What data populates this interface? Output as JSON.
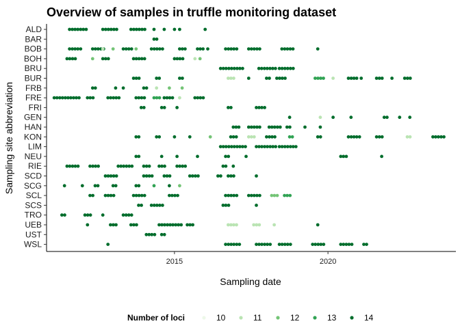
{
  "chart_data": {
    "type": "scatter",
    "title": "Overview of samples in truffle monitoring dataset",
    "xlabel": "Sampling date",
    "ylabel": "Sampling site abbreviation",
    "x_ticks": [
      "2015",
      "2020"
    ],
    "xlim": [
      "2010-11-01",
      "2024-03-01"
    ],
    "grid": false,
    "legend": {
      "title": "Number of loci",
      "position": "bottom",
      "entries": [
        {
          "label": "10",
          "color": "#edf8e9"
        },
        {
          "label": "11",
          "color": "#bae4b3"
        },
        {
          "label": "12",
          "color": "#74c476"
        },
        {
          "label": "13",
          "color": "#31a354"
        },
        {
          "label": "14",
          "color": "#006d2c"
        }
      ]
    },
    "categories": [
      "ALD",
      "BAR",
      "BOB",
      "BOH",
      "BRU",
      "BUR",
      "FRB",
      "FRE",
      "FRI",
      "GEN",
      "HAN",
      "KON",
      "LIM",
      "NEU",
      "RIE",
      "SCD",
      "SCG",
      "SCL",
      "SCS",
      "TRO",
      "UEB",
      "UST",
      "WSL"
    ],
    "series": [
      {
        "site": "ALD",
        "points": [
          [
            "2011-08-01",
            14,
            7
          ],
          [
            "2012-09-01",
            14,
            6
          ],
          [
            "2013-08-01",
            14,
            6
          ],
          [
            "2014-05-01",
            14,
            1
          ],
          [
            "2014-09-01",
            14,
            1
          ],
          [
            "2015-01-01",
            14,
            1
          ],
          [
            "2015-03-01",
            14,
            1
          ],
          [
            "2016-01-01",
            14,
            1
          ]
        ]
      },
      {
        "site": "BAR",
        "points": [
          [
            "2014-05-01",
            14,
            2
          ]
        ]
      },
      {
        "site": "BOB",
        "points": [
          [
            "2011-08-01",
            14,
            5
          ],
          [
            "2012-05-01",
            14,
            5
          ],
          [
            "2012-09-01",
            11,
            1
          ],
          [
            "2013-01-01",
            12,
            1
          ],
          [
            "2013-05-01",
            14,
            4
          ],
          [
            "2013-10-01",
            12,
            1
          ],
          [
            "2014-04-01",
            14,
            5
          ],
          [
            "2015-03-01",
            14,
            3
          ],
          [
            "2015-10-01",
            14,
            3
          ],
          [
            "2016-02-01",
            14,
            1
          ],
          [
            "2016-09-01",
            14,
            5
          ],
          [
            "2017-06-01",
            14,
            5
          ],
          [
            "2018-07-01",
            14,
            5
          ],
          [
            "2019-09-01",
            14,
            1
          ]
        ]
      },
      {
        "site": "BOH",
        "points": [
          [
            "2011-07-01",
            14,
            4
          ],
          [
            "2012-05-01",
            12,
            1
          ],
          [
            "2012-09-01",
            14,
            3
          ],
          [
            "2013-09-01",
            14,
            5
          ],
          [
            "2015-01-01",
            14,
            4
          ],
          [
            "2015-09-01",
            11,
            1
          ],
          [
            "2015-11-01",
            12,
            1
          ]
        ]
      },
      {
        "site": "BRU",
        "points": [
          [
            "2016-07-01",
            14,
            9
          ],
          [
            "2017-10-01",
            14,
            7
          ],
          [
            "2018-06-01",
            14,
            6
          ]
        ]
      },
      {
        "site": "BUR",
        "points": [
          [
            "2013-09-01",
            14,
            3
          ],
          [
            "2014-06-01",
            14,
            2
          ],
          [
            "2015-03-01",
            14,
            2
          ],
          [
            "2016-10-01",
            11,
            3
          ],
          [
            "2017-06-01",
            14,
            1
          ],
          [
            "2018-01-01",
            14,
            2
          ],
          [
            "2018-05-01",
            14,
            4
          ],
          [
            "2019-08-01",
            13,
            4
          ],
          [
            "2020-03-01",
            11,
            1
          ],
          [
            "2020-09-01",
            14,
            4
          ],
          [
            "2021-02-01",
            14,
            1
          ],
          [
            "2021-08-01",
            14,
            3
          ],
          [
            "2022-02-01",
            14,
            1
          ],
          [
            "2022-07-01",
            14,
            3
          ]
        ]
      },
      {
        "site": "FRB",
        "points": [
          [
            "2012-05-01",
            14,
            2
          ],
          [
            "2013-02-01",
            14,
            1
          ],
          [
            "2013-05-01",
            14,
            1
          ],
          [
            "2014-01-01",
            14,
            2
          ],
          [
            "2014-06-01",
            11,
            1
          ],
          [
            "2014-11-01",
            12,
            1
          ],
          [
            "2015-04-01",
            12,
            1
          ]
        ]
      },
      {
        "site": "FRE",
        "points": [
          [
            "2011-02-01",
            14,
            10
          ],
          [
            "2012-03-01",
            14,
            3
          ],
          [
            "2012-11-01",
            14,
            5
          ],
          [
            "2013-10-01",
            14,
            4
          ],
          [
            "2014-05-01",
            13,
            3
          ],
          [
            "2014-09-01",
            14,
            4
          ],
          [
            "2015-03-01",
            11,
            1
          ],
          [
            "2015-09-01",
            14,
            4
          ]
        ]
      },
      {
        "site": "FRI",
        "points": [
          [
            "2013-12-01",
            14,
            2
          ],
          [
            "2014-08-01",
            14,
            2
          ],
          [
            "2015-02-01",
            14,
            1
          ],
          [
            "2016-10-01",
            14,
            2
          ],
          [
            "2017-09-01",
            14,
            4
          ]
        ]
      },
      {
        "site": "GEN",
        "points": [
          [
            "2018-10-01",
            14,
            1
          ],
          [
            "2019-10-01",
            11,
            1
          ],
          [
            "2020-03-01",
            14,
            1
          ],
          [
            "2020-10-01",
            14,
            1
          ],
          [
            "2021-11-01",
            14,
            2
          ],
          [
            "2022-05-01",
            14,
            1
          ],
          [
            "2022-09-01",
            14,
            1
          ]
        ]
      },
      {
        "site": "HAN",
        "points": [
          [
            "2016-12-01",
            14,
            3
          ],
          [
            "2017-06-01",
            14,
            5
          ],
          [
            "2018-02-01",
            14,
            5
          ],
          [
            "2018-09-01",
            14,
            2
          ],
          [
            "2019-04-01",
            14,
            1
          ],
          [
            "2019-10-01",
            14,
            1
          ]
        ]
      },
      {
        "site": "KON",
        "points": [
          [
            "2013-10-01",
            14,
            2
          ],
          [
            "2014-06-01",
            14,
            2
          ],
          [
            "2015-01-01",
            14,
            1
          ],
          [
            "2015-07-01",
            14,
            1
          ],
          [
            "2016-03-01",
            12,
            1
          ],
          [
            "2016-11-01",
            14,
            3
          ],
          [
            "2017-06-01",
            11,
            3
          ],
          [
            "2018-01-01",
            14,
            4
          ],
          [
            "2018-10-01",
            13,
            2
          ],
          [
            "2019-09-01",
            14,
            2
          ],
          [
            "2020-09-01",
            14,
            5
          ],
          [
            "2021-08-01",
            14,
            3
          ],
          [
            "2022-08-01",
            11,
            2
          ],
          [
            "2023-06-01",
            14,
            5
          ]
        ]
      },
      {
        "site": "LIM",
        "points": [
          [
            "2016-07-01",
            14,
            10
          ],
          [
            "2017-09-01",
            14,
            8
          ],
          [
            "2018-06-01",
            14,
            7
          ]
        ]
      },
      {
        "site": "NEU",
        "points": [
          [
            "2013-10-01",
            14,
            2
          ],
          [
            "2014-08-01",
            14,
            1
          ],
          [
            "2015-02-01",
            14,
            1
          ],
          [
            "2015-10-01",
            14,
            1
          ],
          [
            "2016-09-01",
            14,
            2
          ],
          [
            "2017-05-01",
            14,
            1
          ],
          [
            "2020-06-01",
            14,
            3
          ],
          [
            "2021-10-01",
            14,
            1
          ]
        ]
      },
      {
        "site": "RIE",
        "points": [
          [
            "2011-07-01",
            14,
            5
          ],
          [
            "2012-04-01",
            14,
            4
          ],
          [
            "2013-03-01",
            14,
            6
          ],
          [
            "2014-01-01",
            14,
            3
          ],
          [
            "2014-07-01",
            14,
            3
          ],
          [
            "2015-02-01",
            14,
            4
          ],
          [
            "2016-08-01",
            14,
            2
          ],
          [
            "2016-12-01",
            14,
            1
          ]
        ]
      },
      {
        "site": "SCD",
        "points": [
          [
            "2012-10-01",
            14,
            5
          ],
          [
            "2014-01-01",
            14,
            4
          ],
          [
            "2014-09-01",
            14,
            3
          ],
          [
            "2015-07-01",
            14,
            4
          ],
          [
            "2016-06-01",
            14,
            2
          ],
          [
            "2016-10-01",
            14,
            3
          ],
          [
            "2017-09-01",
            14,
            1
          ]
        ]
      },
      {
        "site": "SCG",
        "points": [
          [
            "2011-06-01",
            14,
            1
          ],
          [
            "2012-01-01",
            14,
            1
          ],
          [
            "2012-06-01",
            14,
            2
          ],
          [
            "2013-01-01",
            14,
            2
          ],
          [
            "2013-10-01",
            14,
            2
          ],
          [
            "2014-05-01",
            13,
            1
          ],
          [
            "2014-11-01",
            14,
            1
          ],
          [
            "2015-03-01",
            12,
            1
          ]
        ]
      },
      {
        "site": "SCL",
        "points": [
          [
            "2012-04-01",
            14,
            2
          ],
          [
            "2012-10-01",
            14,
            4
          ],
          [
            "2013-09-01",
            14,
            5
          ],
          [
            "2014-11-01",
            14,
            4
          ],
          [
            "2016-09-01",
            14,
            5
          ],
          [
            "2017-06-01",
            14,
            5
          ],
          [
            "2018-03-01",
            12,
            3
          ],
          [
            "2018-08-01",
            13,
            3
          ]
        ]
      },
      {
        "site": "SCS",
        "points": [
          [
            "2013-11-01",
            14,
            2
          ],
          [
            "2014-04-01",
            14,
            5
          ],
          [
            "2016-08-01",
            14,
            3
          ],
          [
            "2017-09-01",
            14,
            1
          ]
        ]
      },
      {
        "site": "TRO",
        "points": [
          [
            "2011-05-01",
            14,
            2
          ],
          [
            "2012-02-01",
            14,
            3
          ],
          [
            "2012-09-01",
            14,
            1
          ],
          [
            "2013-05-01",
            14,
            4
          ]
        ]
      },
      {
        "site": "UEB",
        "points": [
          [
            "2012-03-01",
            14,
            1
          ],
          [
            "2012-12-01",
            14,
            3
          ],
          [
            "2013-08-01",
            14,
            3
          ],
          [
            "2014-07-01",
            14,
            9
          ],
          [
            "2015-06-01",
            14,
            3
          ],
          [
            "2016-10-01",
            11,
            4
          ],
          [
            "2017-08-01",
            11,
            3
          ],
          [
            "2018-04-01",
            11,
            1
          ],
          [
            "2019-09-01",
            14,
            1
          ]
        ]
      },
      {
        "site": "UST",
        "points": [
          [
            "2014-02-01",
            14,
            4
          ],
          [
            "2014-08-01",
            14,
            2
          ]
        ]
      },
      {
        "site": "WSL",
        "points": [
          [
            "2012-11-01",
            14,
            1
          ],
          [
            "2016-09-01",
            14,
            6
          ],
          [
            "2017-09-01",
            14,
            6
          ],
          [
            "2018-06-01",
            14,
            5
          ],
          [
            "2019-07-01",
            14,
            5
          ],
          [
            "2020-06-01",
            14,
            5
          ],
          [
            "2021-03-01",
            14,
            2
          ]
        ]
      }
    ]
  }
}
